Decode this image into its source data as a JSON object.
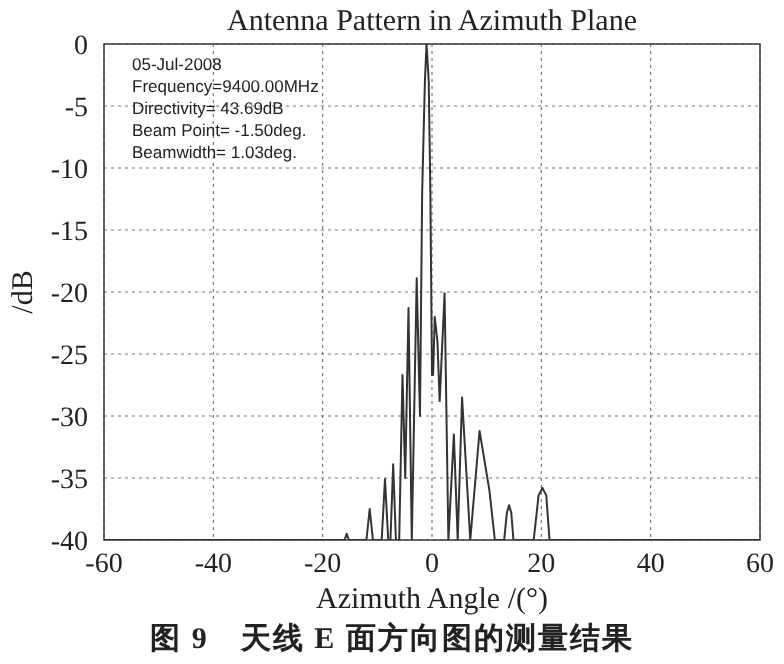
{
  "chart_data": {
    "type": "line",
    "title": "Antenna Pattern in Azimuth Plane",
    "xlabel": "Azimuth Angle /(°)",
    "ylabel": "/dB",
    "annotations": [
      "05-Jul-2008",
      "Frequency=9400.00MHz",
      "Directivity= 43.69dB",
      "Beam Point= -1.50deg.",
      "Beamwidth= 1.03deg.",
      "图 9　天线 E 面方向图的测量结果"
    ],
    "x": [
      -60,
      -16,
      -15.6,
      -15.2,
      -12,
      -11.4,
      -10.8,
      -9.2,
      -8.6,
      -8,
      -7.6,
      -7.1,
      -6.6,
      -6,
      -5.4,
      -4.9,
      -4.3,
      -3.7,
      -2.8,
      -2.2,
      -1.8,
      -1.3,
      -1,
      -0.6,
      -0.3,
      0,
      0.2,
      0.5,
      1,
      1.4,
      2.3,
      3,
      4,
      4.7,
      5.5,
      7,
      8.7,
      10.5,
      11.5,
      13.2,
      13.7,
      14.1,
      14.5,
      14.9,
      18.6,
      19.5,
      20.2,
      20.9,
      21.5,
      60
    ],
    "series": [
      {
        "color": "#333333",
        "values": [
          -40,
          -40,
          -39.5,
          -40,
          -40,
          -37.5,
          -40,
          -40,
          -35.1,
          -40,
          -40,
          -33.9,
          -40,
          -40,
          -26.7,
          -35,
          -21.3,
          -40,
          -18.9,
          -30,
          -12,
          -3,
          0,
          -3,
          -12,
          -26.7,
          -26.7,
          -22,
          -24,
          -28.8,
          -20.1,
          -40,
          -31.5,
          -40,
          -28.5,
          -40,
          -31.2,
          -36,
          -40,
          -40,
          -37.8,
          -37.2,
          -37.8,
          -40,
          -40,
          -36.4,
          -35.8,
          -36.4,
          -40,
          -40
        ]
      }
    ],
    "xlim": [
      -60,
      60
    ],
    "ylim": [
      -40,
      0
    ],
    "xticks": [
      -60,
      -40,
      -20,
      0,
      20,
      40,
      60
    ],
    "yticks": [
      -40,
      -35,
      -30,
      -25,
      -20,
      -15,
      -10,
      -5,
      0
    ],
    "grid": true
  }
}
